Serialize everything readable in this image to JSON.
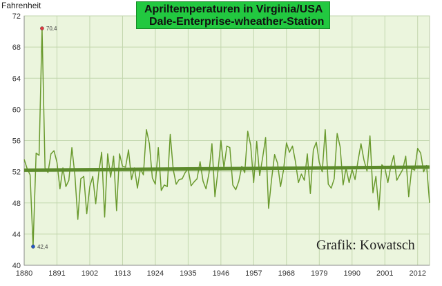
{
  "chart_data": {
    "type": "line",
    "title": "Apriltemperaturen in Virginia/USA",
    "subtitle": "Dale-Enterprise-wheather-Station",
    "ylabel": "Fahrenheit",
    "credit": "Grafik: Kowatsch",
    "xlim": [
      1880,
      2016
    ],
    "ylim": [
      40,
      72
    ],
    "yticks": [
      40,
      44,
      48,
      52,
      56,
      60,
      64,
      68,
      72
    ],
    "xticks": [
      1880,
      1891,
      1902,
      1913,
      1924,
      1935,
      1946,
      1957,
      1968,
      1979,
      1990,
      2001,
      2012
    ],
    "grid": true,
    "annotations": [
      {
        "x": 1886,
        "y": 70.4,
        "label": "70,4"
      },
      {
        "x": 1883,
        "y": 42.4,
        "label": "42,4"
      }
    ],
    "series": [
      {
        "x": [
          1880,
          1881,
          1882,
          1883,
          1884,
          1885,
          1886,
          1887,
          1888,
          1889,
          1890,
          1891,
          1892,
          1893,
          1894,
          1895,
          1896,
          1897,
          1898,
          1899,
          1900,
          1901,
          1902,
          1903,
          1904,
          1905,
          1906,
          1907,
          1908,
          1909,
          1910,
          1911,
          1912,
          1913,
          1914,
          1915,
          1916,
          1917,
          1918,
          1919,
          1920,
          1921,
          1922,
          1923,
          1924,
          1925,
          1926,
          1927,
          1928,
          1929,
          1930,
          1931,
          1932,
          1933,
          1934,
          1935,
          1936,
          1937,
          1938,
          1939,
          1940,
          1941,
          1942,
          1943,
          1944,
          1945,
          1946,
          1947,
          1948,
          1949,
          1950,
          1951,
          1952,
          1953,
          1954,
          1955,
          1956,
          1957,
          1958,
          1959,
          1960,
          1961,
          1962,
          1963,
          1964,
          1965,
          1966,
          1967,
          1968,
          1969,
          1970,
          1971,
          1972,
          1973,
          1974,
          1975,
          1976,
          1977,
          1978,
          1979,
          1980,
          1981,
          1982,
          1983,
          1984,
          1985,
          1986,
          1987,
          1988,
          1989,
          1990,
          1991,
          1992,
          1993,
          1994,
          1995,
          1996,
          1997,
          1998,
          1999,
          2000,
          2001,
          2002,
          2003,
          2004,
          2005,
          2006,
          2007,
          2008,
          2009,
          2010,
          2011,
          2012,
          2013,
          2014,
          2015,
          2016
        ],
        "values": [
          53.6,
          52.4,
          51.6,
          42.4,
          54.4,
          54.1,
          70.4,
          52.5,
          51.9,
          54.3,
          54.7,
          53.2,
          49.8,
          52.5,
          50.1,
          50.9,
          55.1,
          51.6,
          45.9,
          51.1,
          51.4,
          46.6,
          50.1,
          51.4,
          47.9,
          51.8,
          54.5,
          46.2,
          54.3,
          51.3,
          54.0,
          47.0,
          54.3,
          52.7,
          52.6,
          54.8,
          51.0,
          52.5,
          49.9,
          52.4,
          51.6,
          57.4,
          55.6,
          51.2,
          50.4,
          55.1,
          49.6,
          50.3,
          50.1,
          56.8,
          52.3,
          50.4,
          51.0,
          51.1,
          51.9,
          52.4,
          50.2,
          50.7,
          51.1,
          53.3,
          50.8,
          49.8,
          51.8,
          55.6,
          48.8,
          52.1,
          56.0,
          52.5,
          55.3,
          55.1,
          50.3,
          49.7,
          50.8,
          52.7,
          51.9,
          57.2,
          55.4,
          50.6,
          55.9,
          51.5,
          53.8,
          56.4,
          47.3,
          51.0,
          54.2,
          53.1,
          50.1,
          52.2,
          55.7,
          54.5,
          55.3,
          53.3,
          50.6,
          51.7,
          50.9,
          54.3,
          49.2,
          54.8,
          55.8,
          53.2,
          52.0,
          57.4,
          50.4,
          49.9,
          51.1,
          56.9,
          55.2,
          50.3,
          52.5,
          50.6,
          52.3,
          51.0,
          53.4,
          55.6,
          53.5,
          52.1,
          56.6,
          49.3,
          51.4,
          47.1,
          52.9,
          52.5,
          50.6,
          52.7,
          54.1,
          50.9,
          51.6,
          52.3,
          54.0,
          48.8,
          52.4,
          52.2,
          55.0,
          54.4,
          52.0,
          52.8,
          48.0
        ]
      },
      {
        "x": [
          1880,
          2016
        ],
        "values": [
          52.2,
          52.6
        ]
      }
    ]
  }
}
